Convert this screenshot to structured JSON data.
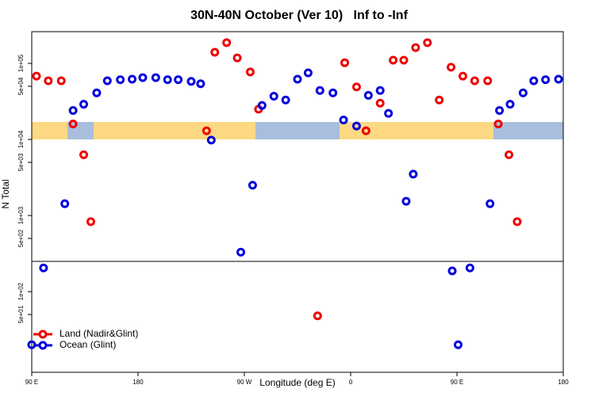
{
  "chart_data": {
    "type": "scatter",
    "title": "30N-40N October (Ver 10)   Inf to -Inf",
    "xlabel": "Longitude (deg E)",
    "ylabel": "N Total",
    "yscale": "log",
    "legend": "lower left",
    "xlim": [
      90,
      540
    ],
    "ylim": [
      8.7,
      261000
    ],
    "xticks": [
      {
        "value": 90,
        "label": "90 E"
      },
      {
        "value": 180,
        "label": "180"
      },
      {
        "value": 270,
        "label": "90 W"
      },
      {
        "value": 360,
        "label": "0"
      },
      {
        "value": 450,
        "label": "90 E"
      },
      {
        "value": 540,
        "label": "180"
      }
    ],
    "yticks": [
      {
        "value": 50,
        "label": "5e+01"
      },
      {
        "value": 100,
        "label": "1e+02"
      },
      {
        "value": 500,
        "label": "5e+02"
      },
      {
        "value": 1000,
        "label": "1e+03"
      },
      {
        "value": 5000,
        "label": "5e+03"
      },
      {
        "value": 10000,
        "label": "1e+04"
      },
      {
        "value": 50000,
        "label": "5e+04"
      },
      {
        "value": 100000,
        "label": "1e+05"
      }
    ],
    "series": [
      {
        "name": "Land (Nadir&Glint)",
        "color": "#ee0000",
        "x": [
          94,
          104,
          115,
          125,
          134,
          140,
          238,
          245,
          255,
          264,
          275,
          282,
          332,
          355,
          365,
          373,
          385,
          396,
          405,
          415,
          425,
          435,
          445,
          455,
          465,
          476,
          485,
          494,
          501
        ],
        "values": [
          68000,
          59000,
          59000,
          16000,
          6300,
          830,
          13000,
          140000,
          187000,
          118000,
          77000,
          25000,
          48,
          102000,
          49000,
          13000,
          30000,
          110000,
          110000,
          161000,
          187000,
          33000,
          89000,
          68000,
          59000,
          59000,
          16000,
          6300,
          830
        ]
      },
      {
        "name": "Ocean (Glint)",
        "color": "#0000dd",
        "x": [
          90,
          100,
          118,
          125,
          134,
          145,
          154,
          165,
          175,
          184,
          195,
          205,
          214,
          225,
          233,
          242,
          267,
          277,
          285,
          295,
          305,
          315,
          324,
          334,
          345,
          354,
          365,
          375,
          385,
          392,
          407,
          413,
          446,
          451,
          461,
          478,
          486,
          495,
          506,
          515,
          525,
          536
        ],
        "values": [
          20,
          205,
          1430,
          24000,
          29000,
          41000,
          59000,
          61000,
          62000,
          65000,
          65000,
          61000,
          61000,
          58000,
          54000,
          9800,
          330,
          2500,
          28000,
          37000,
          33000,
          62000,
          75000,
          44000,
          41000,
          18000,
          15000,
          38000,
          44000,
          22000,
          1540,
          3500,
          187,
          20,
          205,
          1430,
          24000,
          29000,
          41000,
          59000,
          61000,
          62000
        ]
      }
    ]
  }
}
